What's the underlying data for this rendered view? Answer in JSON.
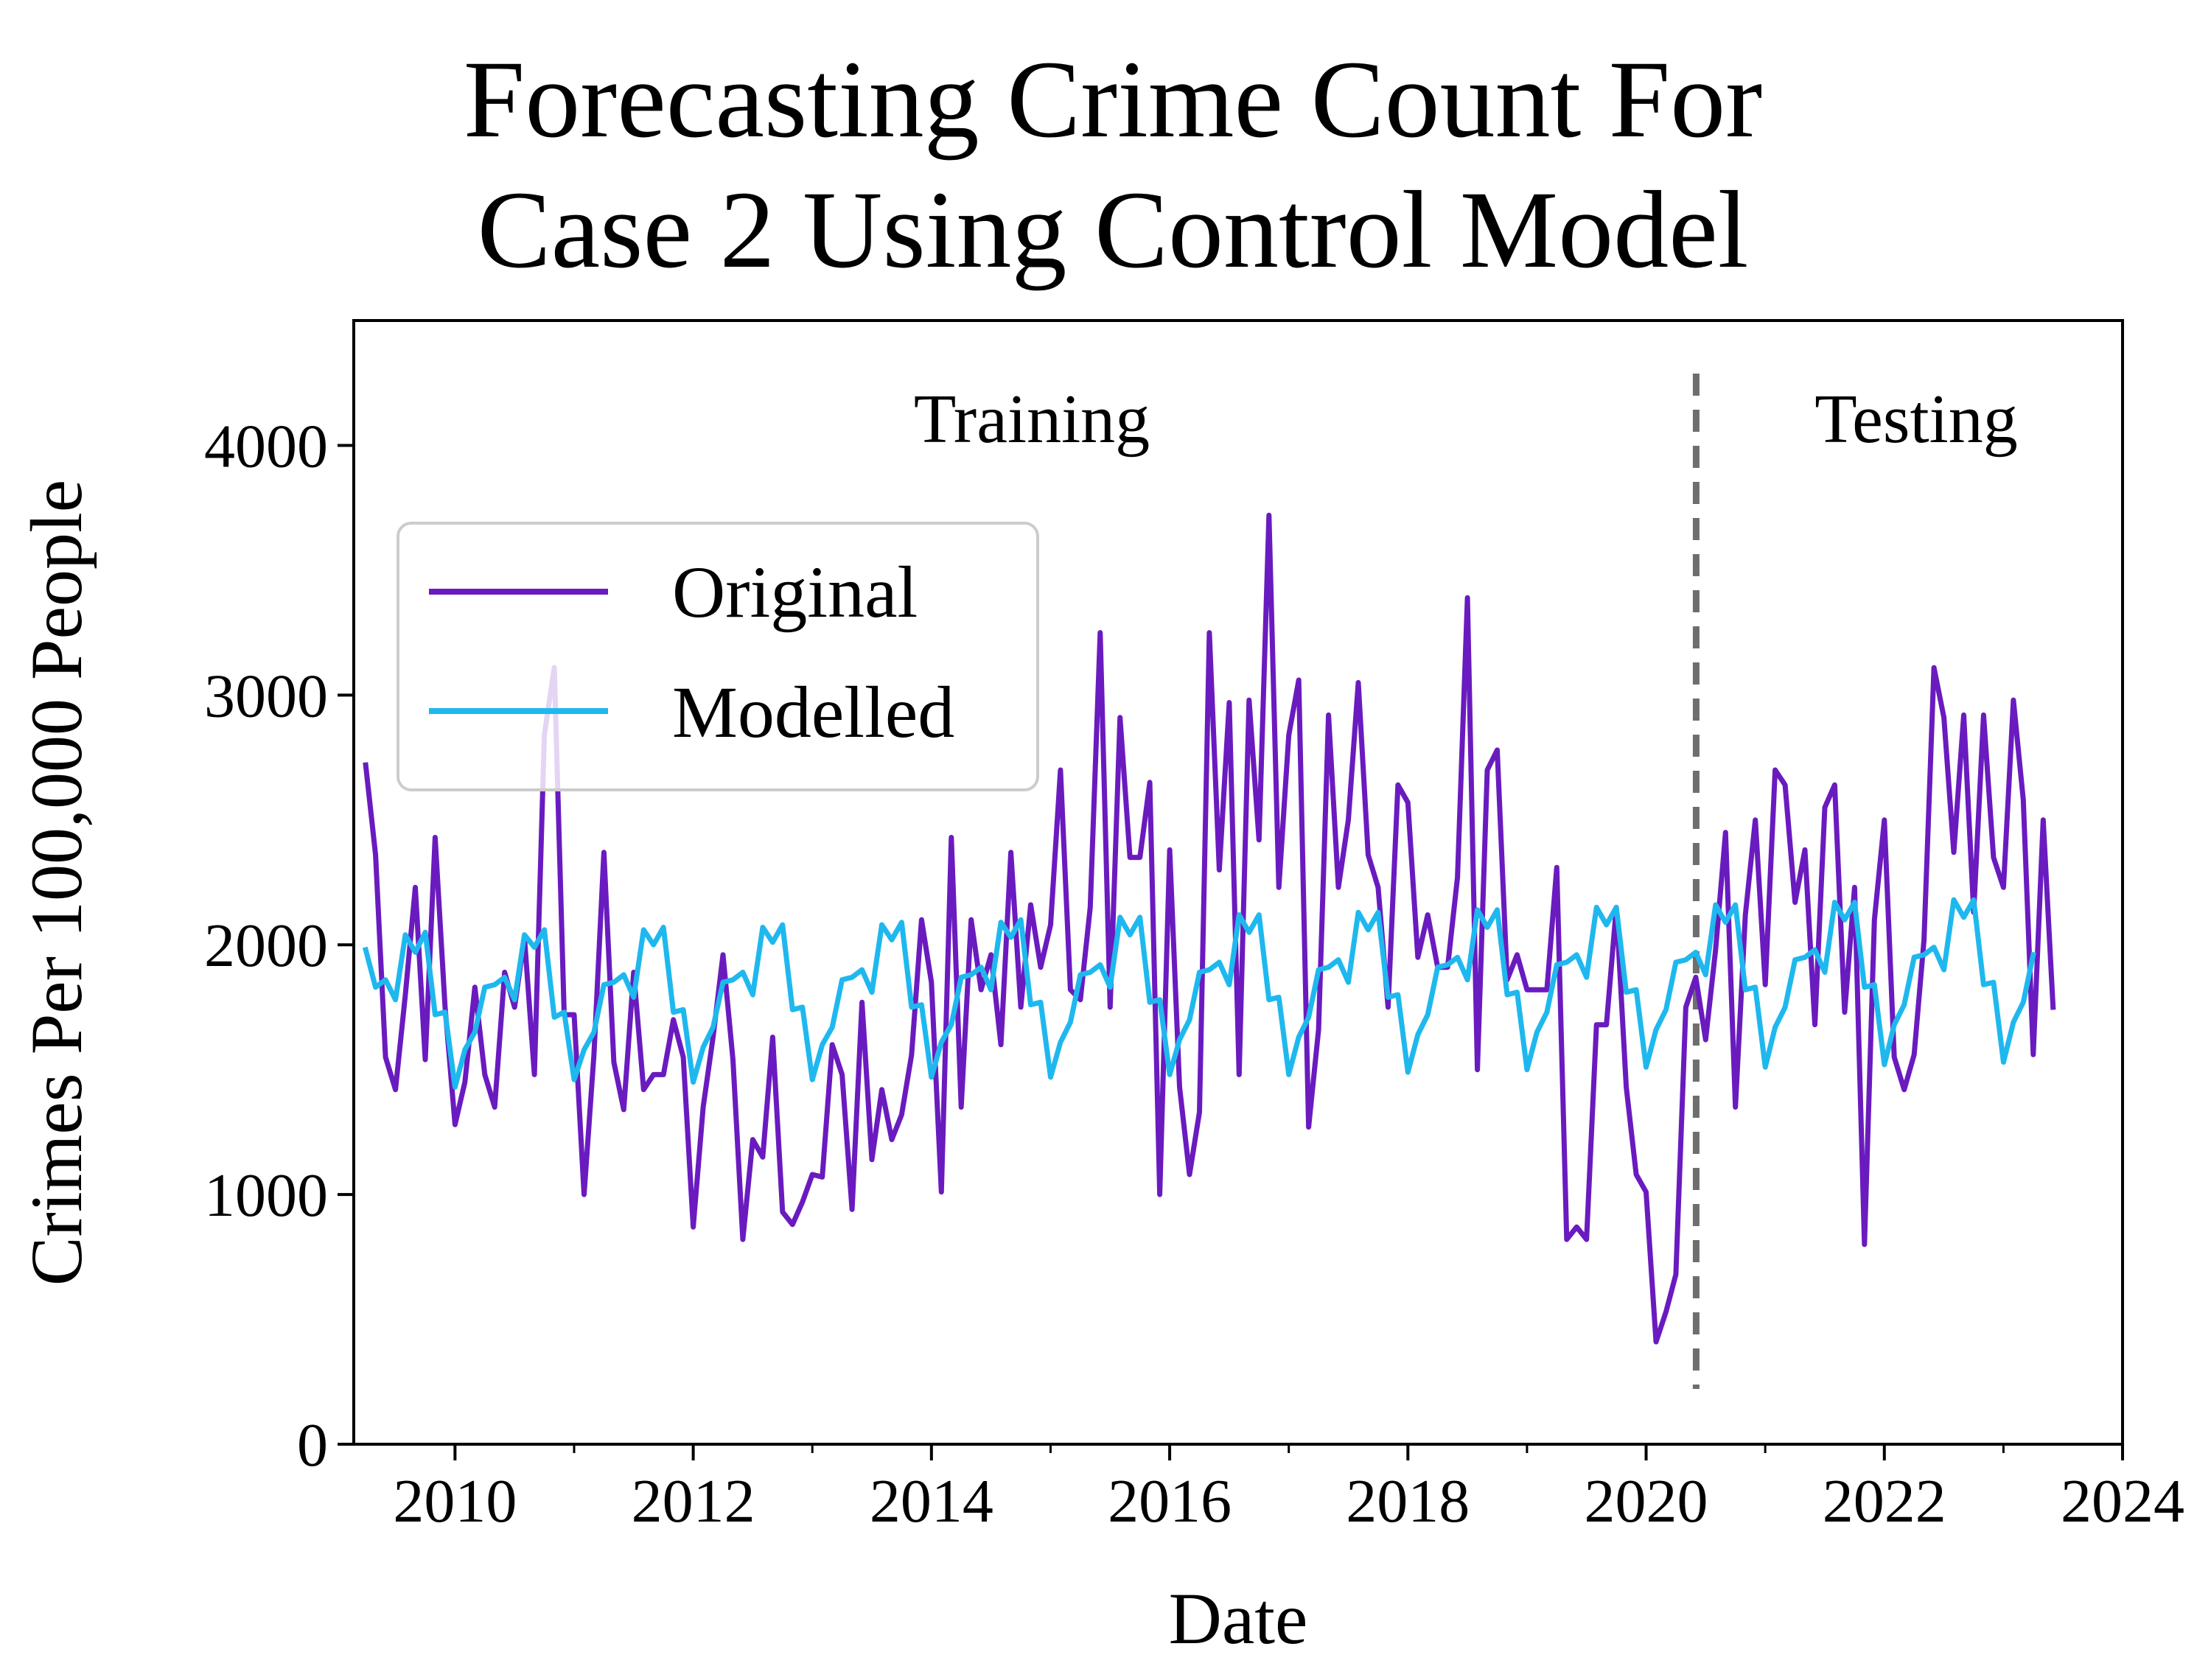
{
  "chart_data": {
    "type": "line",
    "title_lines": [
      "Forecasting Crime Count For",
      "Case 2 Using Control Model"
    ],
    "xlabel": "Date",
    "ylabel": "Crimes Per 100,000 People",
    "xlim": [
      2009.15,
      2024.0
    ],
    "ylim": [
      0,
      4500
    ],
    "x_ticks": [
      2010,
      2012,
      2014,
      2016,
      2018,
      2020,
      2022,
      2024
    ],
    "y_ticks": [
      0,
      1000,
      2000,
      3000,
      4000
    ],
    "grid": false,
    "legend_position": "upper-left",
    "split_date": 2020.42,
    "region_labels": {
      "training": "Training",
      "testing": "Testing"
    },
    "colors": {
      "original": "#6a1bbf",
      "modelled": "#1fb8ee",
      "split": "#6e6e6e"
    },
    "x_start": 2009.25,
    "x_step_months": 1,
    "series": [
      {
        "name": "Original",
        "values": [
          2720,
          2360,
          1550,
          1420,
          1800,
          2230,
          1540,
          2430,
          1750,
          1280,
          1450,
          1830,
          1480,
          1350,
          1890,
          1750,
          2030,
          1480,
          2840,
          3110,
          1720,
          1720,
          1000,
          1560,
          2370,
          1530,
          1340,
          1890,
          1420,
          1480,
          1480,
          1700,
          1550,
          870,
          1350,
          1630,
          1960,
          1540,
          820,
          1220,
          1150,
          1630,
          930,
          880,
          970,
          1080,
          1070,
          1600,
          1480,
          940,
          1770,
          1140,
          1420,
          1220,
          1320,
          1560,
          2100,
          1850,
          1010,
          2430,
          1350,
          2100,
          1820,
          1960,
          1600,
          2370,
          1750,
          2160,
          1910,
          2080,
          2700,
          1820,
          1780,
          2150,
          3250,
          1750,
          2910,
          2350,
          2350,
          2650,
          1000,
          2380,
          1430,
          1080,
          1330,
          3250,
          2300,
          2970,
          1480,
          2980,
          2420,
          3720,
          2230,
          2840,
          3060,
          1270,
          1660,
          2920,
          2230,
          2500,
          3050,
          2360,
          2230,
          1750,
          2640,
          2570,
          1950,
          2120,
          1910,
          1910,
          2270,
          3390,
          1500,
          2700,
          2780,
          1860,
          1960,
          1820,
          1820,
          1820,
          2310,
          820,
          870,
          820,
          1680,
          1680,
          2150,
          1430,
          1080,
          1010,
          410,
          530,
          680,
          1750,
          1870,
          1620,
          1980,
          2450,
          1350,
          2120,
          2500,
          1840,
          2700,
          2640,
          2170,
          2380,
          1680,
          2550,
          2640,
          1730,
          2230,
          800,
          2100,
          2500,
          1550,
          1420,
          1560,
          2020,
          3110,
          2910,
          2370,
          2920,
          2130,
          2920,
          2350,
          2230,
          2980,
          2580,
          1560,
          2500,
          1750
        ]
      },
      {
        "name": "Modelled",
        "values": [
          1980,
          1830,
          1860,
          1780,
          2040,
          1970,
          2050,
          1720,
          1730,
          1430,
          1580,
          1650,
          1830,
          1840,
          1870,
          1780,
          2040,
          1990,
          2060,
          1710,
          1730,
          1460,
          1580,
          1650,
          1840,
          1850,
          1880,
          1790,
          2060,
          2000,
          2070,
          1730,
          1740,
          1450,
          1590,
          1670,
          1850,
          1860,
          1890,
          1800,
          2070,
          2010,
          2080,
          1740,
          1750,
          1460,
          1600,
          1670,
          1860,
          1870,
          1900,
          1810,
          2080,
          2020,
          2090,
          1750,
          1760,
          1470,
          1610,
          1680,
          1870,
          1880,
          1910,
          1820,
          2090,
          2030,
          2100,
          1760,
          1770,
          1470,
          1610,
          1690,
          1880,
          1890,
          1920,
          1830,
          2110,
          2040,
          2110,
          1770,
          1780,
          1480,
          1620,
          1700,
          1890,
          1900,
          1930,
          1840,
          2120,
          2050,
          2120,
          1780,
          1790,
          1480,
          1630,
          1710,
          1900,
          1910,
          1940,
          1850,
          2130,
          2060,
          2130,
          1790,
          1800,
          1490,
          1640,
          1720,
          1910,
          1920,
          1950,
          1860,
          2140,
          2070,
          2140,
          1800,
          1810,
          1500,
          1650,
          1730,
          1920,
          1930,
          1960,
          1870,
          2150,
          2080,
          2150,
          1810,
          1820,
          1510,
          1660,
          1740,
          1930,
          1940,
          1970,
          1880,
          2160,
          2090,
          2160,
          1820,
          1830,
          1510,
          1670,
          1750,
          1940,
          1950,
          1980,
          1890,
          2170,
          2100,
          2170,
          1830,
          1840,
          1520,
          1680,
          1760,
          1950,
          1960,
          1990,
          1900,
          2180,
          2110,
          2180,
          1840,
          1850,
          1530,
          1690,
          1770,
          1960
        ]
      }
    ]
  }
}
